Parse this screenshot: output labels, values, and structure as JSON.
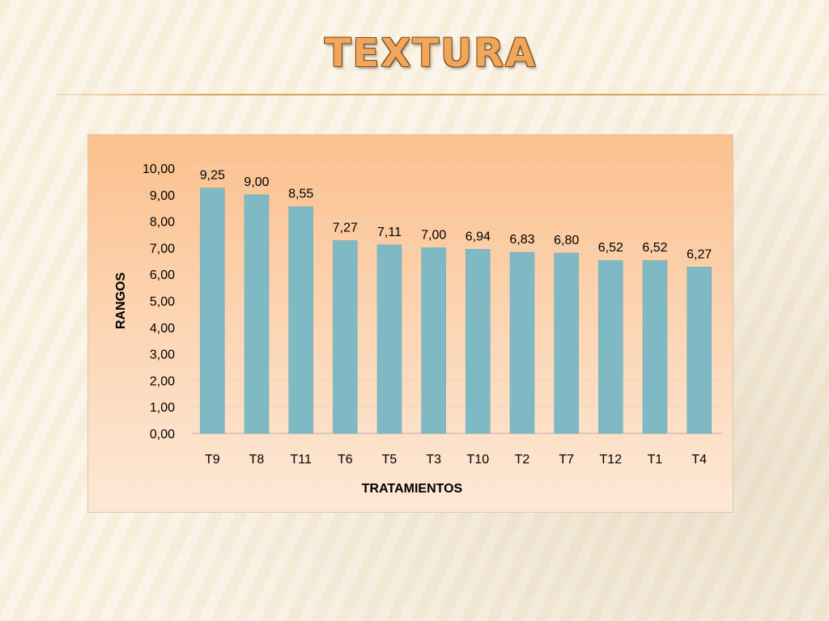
{
  "slide": {
    "title": "TEXTURA"
  },
  "chart_data": {
    "type": "bar",
    "categories": [
      "T9",
      "T8",
      "T11",
      "T6",
      "T5",
      "T3",
      "T10",
      "T2",
      "T7",
      "T12",
      "T1",
      "T4"
    ],
    "values": [
      9.25,
      9.0,
      8.55,
      7.27,
      7.11,
      7.0,
      6.94,
      6.83,
      6.8,
      6.52,
      6.52,
      6.27
    ],
    "value_labels": [
      "9,25",
      "9,00",
      "8,55",
      "7,27",
      "7,11",
      "7,00",
      "6,94",
      "6,83",
      "6,80",
      "6,52",
      "6,52",
      "6,27"
    ],
    "title": "",
    "xlabel": "TRATAMIENTOS",
    "ylabel": "RANGOS",
    "ylim": [
      0,
      10
    ],
    "yticks": [
      "0,00",
      "1,00",
      "2,00",
      "3,00",
      "4,00",
      "5,00",
      "6,00",
      "7,00",
      "8,00",
      "9,00",
      "10,00"
    ],
    "grid": true,
    "legend": "none",
    "colors": {
      "bar": "#7fb9c4",
      "bar_edge": "#6aa7b3",
      "grid": "#e9d6c2",
      "axis": "#b9b0a6"
    }
  }
}
